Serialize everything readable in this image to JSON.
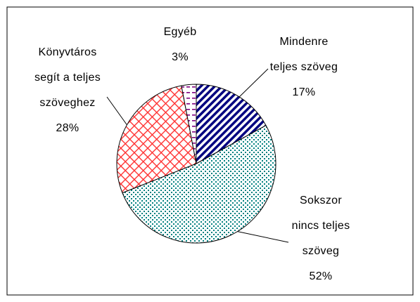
{
  "chart_data": {
    "type": "pie",
    "categories": [
      "Mindenre\nteljes szöveg",
      "Sokszor\nnincs teljes\nszöveg",
      "Könyvtáros\nsegít a teljes\nszöveghez",
      "Egyéb"
    ],
    "values": [
      17,
      52,
      28,
      3
    ],
    "value_labels": [
      "17%",
      "52%",
      "28%",
      "3%"
    ],
    "colors": [
      "#000080",
      "#008080",
      "#ff3333",
      "#800080"
    ]
  }
}
